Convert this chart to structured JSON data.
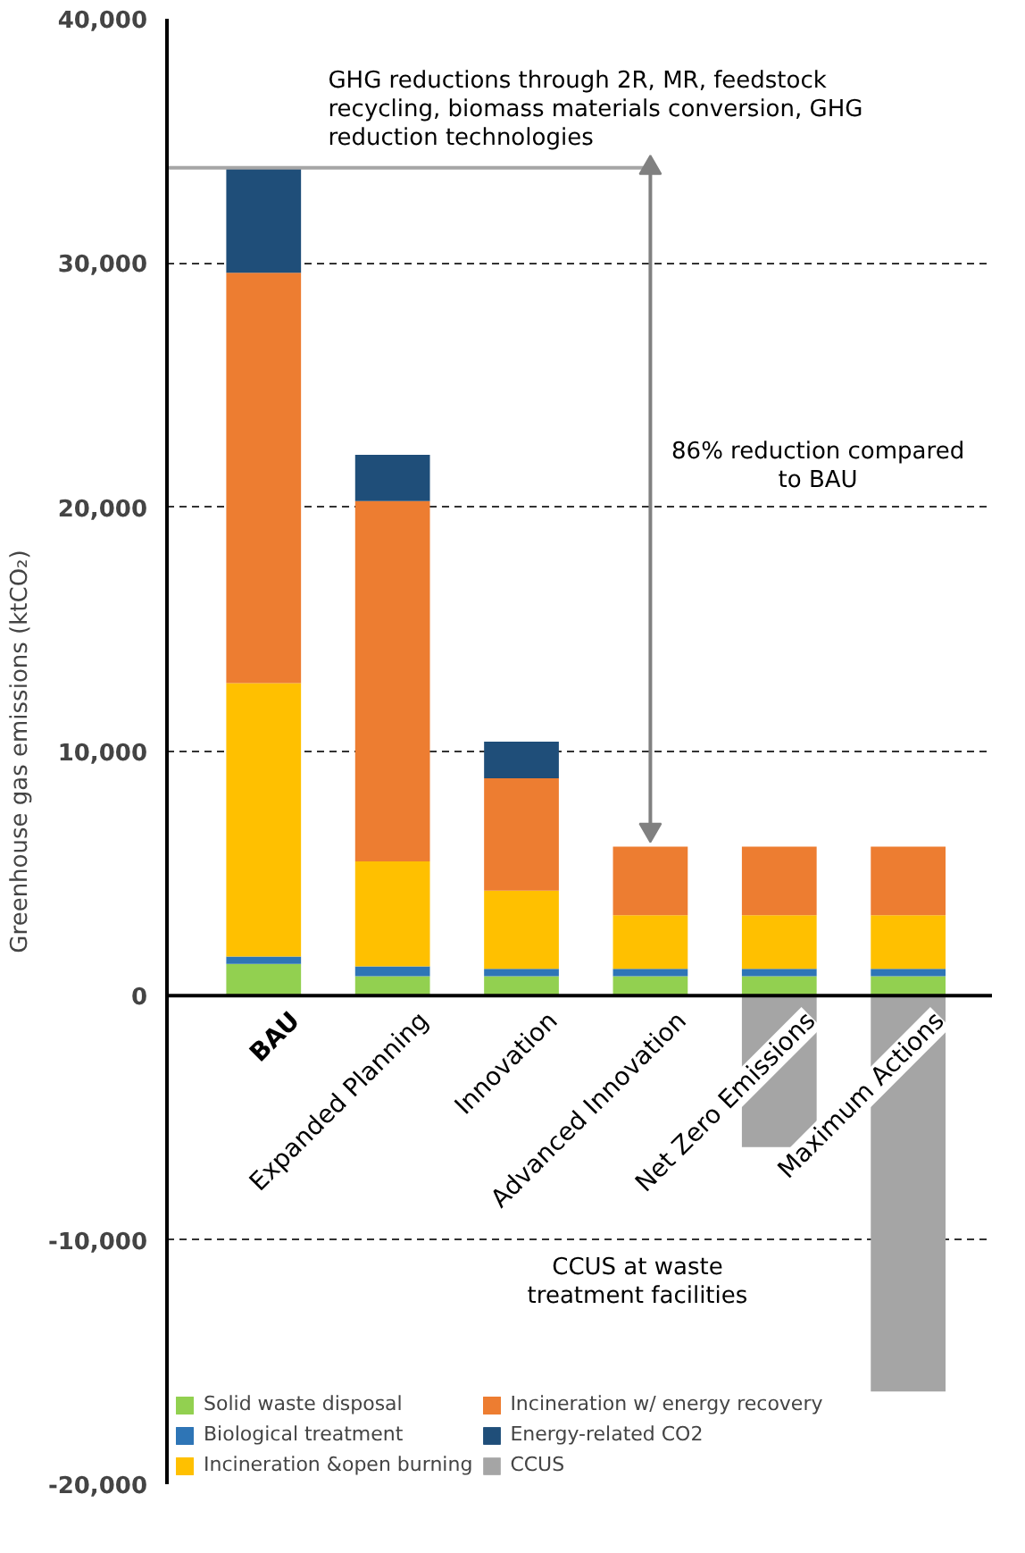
{
  "chart_data": {
    "type": "bar",
    "stacked": true,
    "ylabel": "Greenhouse gas emissions (ktCO₂)",
    "categories": [
      "BAU",
      "Expanded Planning",
      "Innovation",
      "Advanced Innovation",
      "Net Zero Emissions",
      "Maximum Actions"
    ],
    "series": [
      {
        "name": "Solid waste disposal",
        "color": "#92d050",
        "values": [
          1300,
          800,
          800,
          800,
          800,
          800
        ]
      },
      {
        "name": "Biological treatment",
        "color": "#2e75b6",
        "values": [
          300,
          400,
          300,
          300,
          300,
          300
        ]
      },
      {
        "name": "Incineration &open burning",
        "color": "#ffc000",
        "values": [
          11200,
          4300,
          3200,
          2200,
          2200,
          2200
        ]
      },
      {
        "name": "Incineration w/ energy recovery",
        "color": "#ed7d31",
        "values": [
          16800,
          14750,
          4600,
          2800,
          2800,
          2800
        ]
      },
      {
        "name": "Energy-related CO2",
        "color": "#1f4e79",
        "values": [
          4300,
          1900,
          1500,
          0,
          0,
          0
        ]
      },
      {
        "name": "CCUS",
        "color": "#a5a5a5",
        "values": [
          0,
          0,
          0,
          0,
          -6200,
          -16200
        ]
      }
    ],
    "ylim": [
      -20000,
      40000
    ],
    "yticks": [
      {
        "value": -20000,
        "label": "-20,000"
      },
      {
        "value": -10000,
        "label": "-10,000"
      },
      0,
      {
        "value": 10000,
        "label": "10,000"
      },
      {
        "value": 20000,
        "label": "20,000"
      },
      {
        "value": 30000,
        "label": "30,000"
      },
      {
        "value": 40000,
        "label": "40,000"
      }
    ],
    "grid": "y",
    "legend": "bottom",
    "annotations": [
      "GHG reductions through 2R, MR, feedstock recycling, biomass materials conversion, GHG reduction technologies",
      "86% reduction compared to BAU",
      "CCUS at waste treatment facilities"
    ]
  }
}
